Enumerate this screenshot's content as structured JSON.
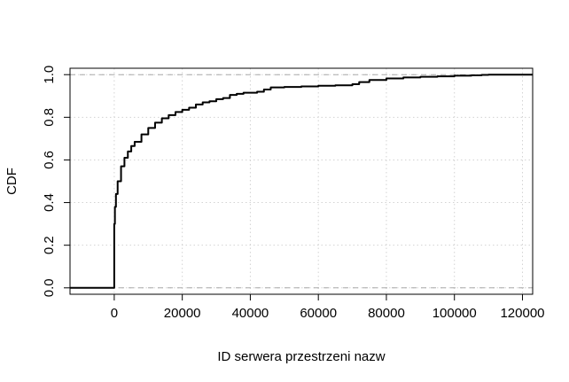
{
  "chart_data": {
    "type": "line",
    "title": "",
    "xlabel": "ID serwera przestrzeni nazw",
    "ylabel": "CDF",
    "xlim": [
      -13000,
      123000
    ],
    "ylim": [
      -0.03,
      1.03
    ],
    "x_ticks": [
      0,
      20000,
      40000,
      60000,
      80000,
      100000,
      120000
    ],
    "x_tick_labels": [
      "0",
      "20000",
      "40000",
      "60000",
      "80000",
      "100000",
      "120000"
    ],
    "y_ticks": [
      0.0,
      0.2,
      0.4,
      0.6,
      0.8,
      1.0
    ],
    "y_tick_labels": [
      "0.0",
      "0.2",
      "0.4",
      "0.6",
      "0.8",
      "1.0"
    ],
    "grid": true,
    "reference_lines": [
      0,
      1
    ],
    "colors": {
      "line": "#000000",
      "grid": "#d3d3d3",
      "reference": "#a9a9a9"
    },
    "series": [
      {
        "x": [
          -13000,
          0,
          0,
          200,
          500,
          1000,
          2000,
          3000,
          4000,
          5000,
          6000,
          8000,
          10000,
          12000,
          14000,
          16000,
          18000,
          20000,
          22000,
          24000,
          26000,
          28000,
          30000,
          32000,
          34000,
          36000,
          38000,
          40000,
          42000,
          44000,
          46000,
          48000,
          50000,
          55000,
          60000,
          65000,
          70000,
          72000,
          75000,
          80000,
          85000,
          90000,
          95000,
          100000,
          105000,
          108000,
          110000,
          123000
        ],
        "y": [
          0.0,
          0.0,
          0.3,
          0.38,
          0.44,
          0.5,
          0.57,
          0.61,
          0.64,
          0.665,
          0.685,
          0.72,
          0.75,
          0.775,
          0.795,
          0.81,
          0.825,
          0.835,
          0.845,
          0.86,
          0.87,
          0.875,
          0.885,
          0.89,
          0.905,
          0.91,
          0.915,
          0.915,
          0.92,
          0.93,
          0.94,
          0.94,
          0.942,
          0.945,
          0.948,
          0.95,
          0.955,
          0.965,
          0.975,
          0.982,
          0.987,
          0.99,
          0.992,
          0.995,
          0.997,
          0.999,
          1.0,
          1.0
        ]
      }
    ]
  }
}
